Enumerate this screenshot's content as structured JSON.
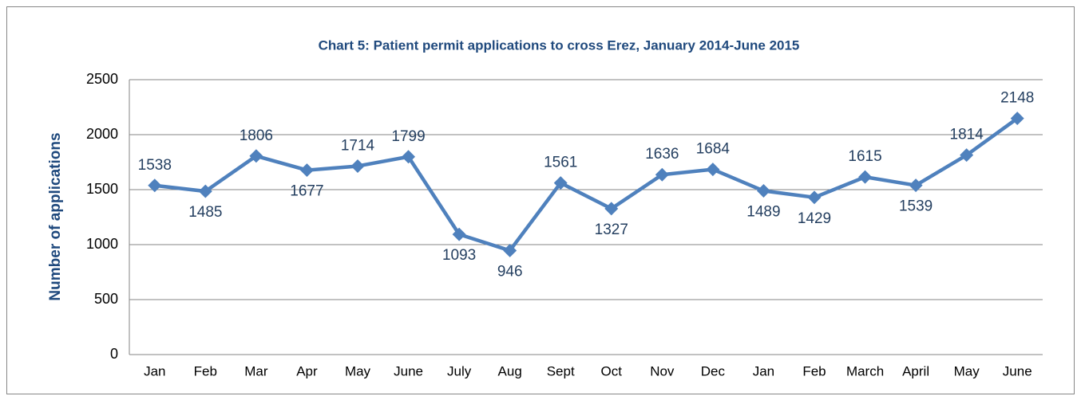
{
  "chart_data": {
    "type": "line",
    "title": "Chart 5: Patient permit applications to cross Erez, January  2014-June 2015",
    "y_label": "Number of applications",
    "categories": [
      "Jan",
      "Feb",
      "Mar",
      "Apr",
      "May",
      "June",
      "July",
      "Aug",
      "Sept",
      "Oct",
      "Nov",
      "Dec",
      "Jan",
      "Feb",
      "March",
      "April",
      "May",
      "June"
    ],
    "values": [
      1538,
      1485,
      1806,
      1677,
      1714,
      1799,
      1093,
      946,
      1561,
      1327,
      1636,
      1684,
      1489,
      1429,
      1615,
      1539,
      1814,
      2148
    ],
    "color": "#4f81bd",
    "ylim": [
      0,
      2500
    ],
    "yticks": [
      0,
      500,
      1000,
      1500,
      2000,
      2500
    ],
    "grid": true
  }
}
